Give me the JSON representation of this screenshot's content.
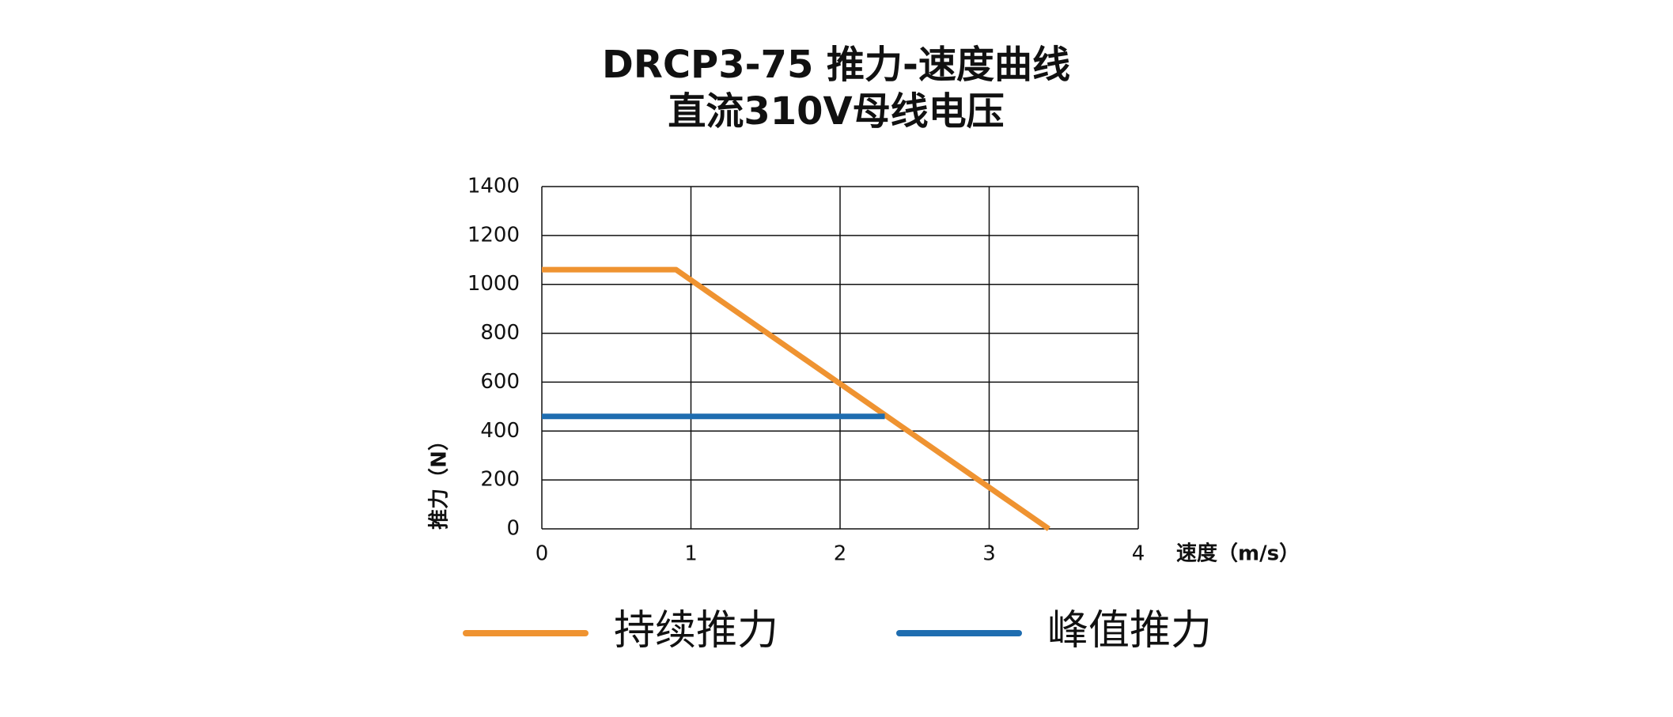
{
  "chart_data": {
    "type": "line",
    "title": "DRCP3-75 推力-速度曲线",
    "subtitle": "直流310V母线电压",
    "x_label": "速度（m/s）",
    "y_label": "推力（N）",
    "series": [
      {
        "name": "持续推力",
        "color": "#ef9331",
        "x": [
          0,
          0.9,
          3.4
        ],
        "values": [
          1060,
          1060,
          0
        ]
      },
      {
        "name": "峰值推力",
        "color": "#1f6db0",
        "x": [
          0,
          2.3
        ],
        "values": [
          460,
          460
        ]
      }
    ],
    "xlim": [
      0,
      4
    ],
    "xticks": [
      0,
      1,
      2,
      3,
      4
    ],
    "ylim": [
      0,
      1400
    ],
    "yticks": [
      0,
      200,
      400,
      600,
      800,
      1000,
      1200,
      1400
    ],
    "grid": true
  }
}
